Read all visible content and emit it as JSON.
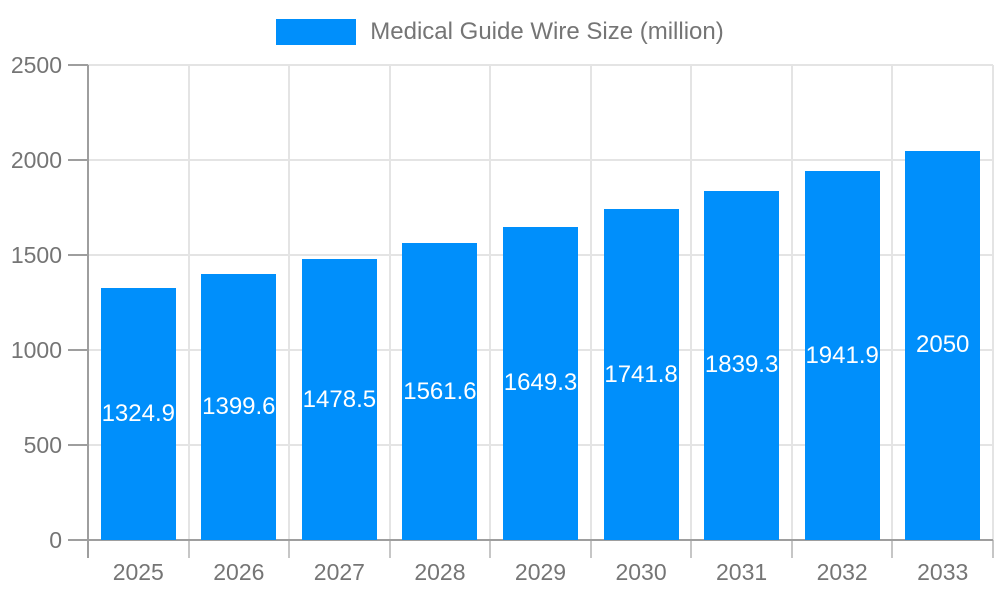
{
  "colors": {
    "bar": "#008FFB",
    "grid": "#e4e4e4",
    "axis": "#9e9e9e",
    "tick": "#c6c6c6",
    "label": "#757575",
    "value_label": "#ffffff",
    "background": "#ffffff"
  },
  "chart_data": {
    "type": "bar",
    "title": "Medical Guide Wire Size (million)",
    "legend_position": "top",
    "categories": [
      "2025",
      "2026",
      "2027",
      "2028",
      "2029",
      "2030",
      "2031",
      "2032",
      "2033"
    ],
    "series": [
      {
        "name": "Medical Guide Wire Size (million)",
        "values": [
          1324.9,
          1399.6,
          1478.5,
          1561.6,
          1649.3,
          1741.8,
          1839.3,
          1941.9,
          2050
        ],
        "value_labels": [
          "1324.9",
          "1399.6",
          "1478.5",
          "1561.6",
          "1649.3",
          "1741.8",
          "1839.3",
          "1941.9",
          "2050"
        ]
      }
    ],
    "xlabel": "",
    "ylabel": "",
    "ylim": [
      0,
      2500
    ],
    "yticks": [
      0,
      500,
      1000,
      1500,
      2000,
      2500
    ],
    "grid": true,
    "value_label_position": "inside-center"
  }
}
